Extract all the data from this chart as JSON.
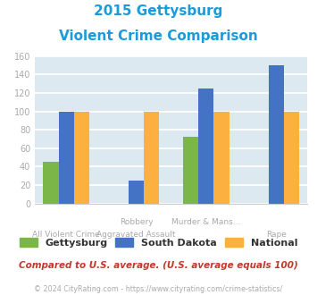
{
  "title_line1": "2015 Gettysburg",
  "title_line2": "Violent Crime Comparison",
  "cat_labels_row1": [
    "",
    "Robbery",
    "Murder & Mans...",
    ""
  ],
  "cat_labels_row2": [
    "All Violent Crime",
    "Aggravated Assault",
    "",
    "Rape"
  ],
  "series": [
    {
      "name": "Gettysburg",
      "values": [
        45,
        0,
        72,
        0
      ],
      "color": "#7ab648"
    },
    {
      "name": "South Dakota",
      "values": [
        100,
        25,
        125,
        150
      ],
      "color": "#4472c4"
    },
    {
      "name": "National",
      "values": [
        100,
        100,
        100,
        100
      ],
      "color": "#fbb040"
    }
  ],
  "ylim": [
    0,
    160
  ],
  "yticks": [
    0,
    20,
    40,
    60,
    80,
    100,
    120,
    140,
    160
  ],
  "title_color": "#1a9bdc",
  "plot_area_color": "#dce9f0",
  "fig_bg_color": "#ffffff",
  "grid_color": "#ffffff",
  "note_text": "Compared to U.S. average. (U.S. average equals 100)",
  "note_color": "#c0392b",
  "footer_text": "© 2024 CityRating.com - https://www.cityrating.com/crime-statistics/",
  "footer_color": "#aaaaaa",
  "legend_colors": [
    "#7ab648",
    "#4472c4",
    "#fbb040"
  ],
  "legend_labels": [
    "Gettysburg",
    "South Dakota",
    "National"
  ],
  "tick_label_color": "#aaaaaa"
}
